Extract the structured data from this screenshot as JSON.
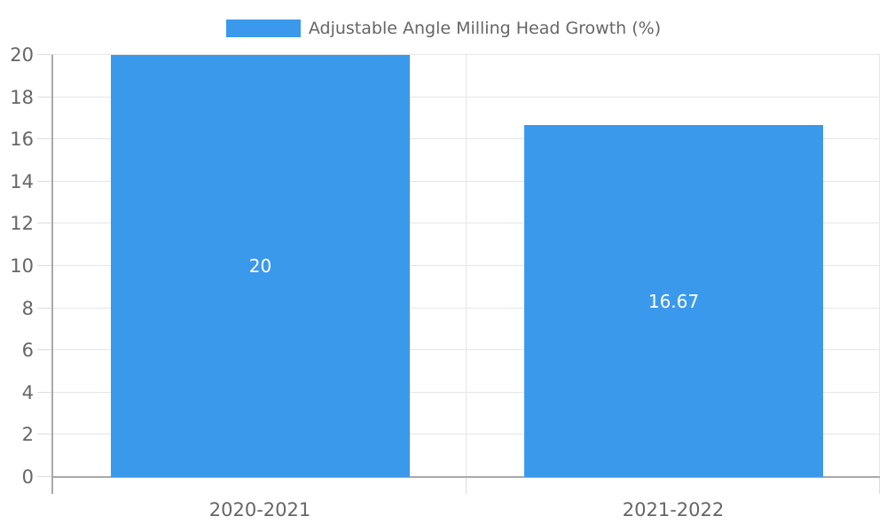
{
  "chart_data": {
    "type": "bar",
    "title": "",
    "legend_label": "Adjustable Angle Milling Head Growth (%)",
    "legend_position": "top",
    "categories": [
      "2020-2021",
      "2021-2022"
    ],
    "values": [
      20,
      16.67
    ],
    "value_labels": [
      "20",
      "16.67"
    ],
    "ylim": [
      0,
      20
    ],
    "ytick_step": 2,
    "ytick_labels": [
      "0",
      "2",
      "4",
      "6",
      "8",
      "10",
      "12",
      "14",
      "16",
      "18",
      "20"
    ],
    "grid": true,
    "colors": {
      "bar": "#3b99ec",
      "value_label": "#ffffff",
      "axis_text": "#666666",
      "grid_line": "#e6e6e6",
      "axis_line": "#a9a9a9",
      "tick_line": "#dcdcdc",
      "background": "#ffffff"
    }
  }
}
